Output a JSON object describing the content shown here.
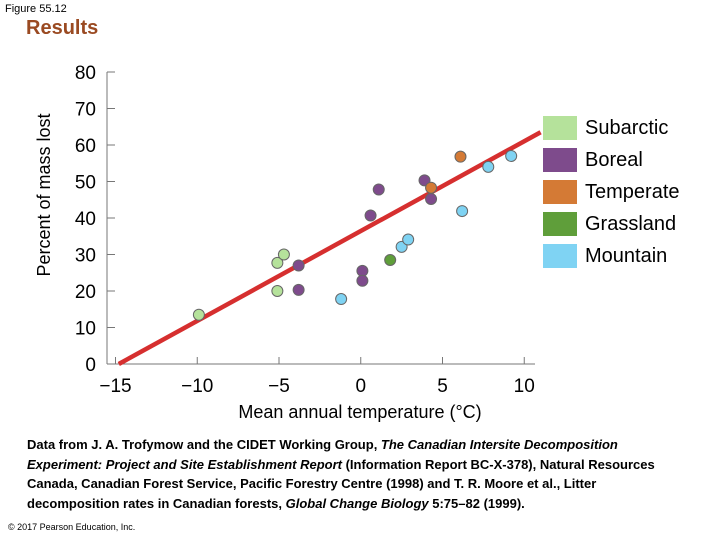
{
  "figure_label": "Figure 55.12",
  "section_title": "Results",
  "chart_data": {
    "type": "scatter",
    "title": "",
    "xlabel": "Mean annual temperature (°C)",
    "ylabel": "Percent of mass lost",
    "xlim": [
      -15,
      11
    ],
    "ylim": [
      0,
      80
    ],
    "xticks": [
      -15,
      -10,
      -5,
      0,
      5,
      10
    ],
    "xtick_labels": [
      "−15",
      "−10",
      "−5",
      "0",
      "5",
      "10"
    ],
    "yticks": [
      0,
      10,
      20,
      30,
      40,
      50,
      60,
      70,
      80
    ],
    "ytick_labels": [
      "0",
      "10",
      "20",
      "30",
      "40",
      "50",
      "60",
      "70",
      "80"
    ],
    "grid": false,
    "legend_position": "right",
    "trendline": {
      "x": [
        -14.8,
        11
      ],
      "y": [
        0,
        63.5
      ],
      "color": "#d62f2f"
    },
    "series": [
      {
        "name": "Subarctic",
        "color": "#b5e29b",
        "points": [
          [
            -9.9,
            13.5
          ],
          [
            -5.1,
            27.7
          ],
          [
            -4.7,
            30.0
          ],
          [
            -5.1,
            20.0
          ]
        ]
      },
      {
        "name": "Boreal",
        "color": "#7e4b8c",
        "points": [
          [
            -3.8,
            27.0
          ],
          [
            -3.8,
            20.3
          ],
          [
            0.1,
            25.5
          ],
          [
            0.1,
            22.8
          ],
          [
            0.6,
            40.7
          ],
          [
            1.1,
            47.8
          ],
          [
            3.9,
            50.3
          ],
          [
            4.3,
            45.2
          ]
        ]
      },
      {
        "name": "Temperate",
        "color": "#d47a35",
        "points": [
          [
            4.3,
            48.3
          ],
          [
            6.1,
            56.8
          ]
        ]
      },
      {
        "name": "Grassland",
        "color": "#5f9e3a",
        "points": [
          [
            1.8,
            28.5
          ]
        ]
      },
      {
        "name": "Mountain",
        "color": "#7fd3f3",
        "points": [
          [
            -1.2,
            17.8
          ],
          [
            2.5,
            32.1
          ],
          [
            2.9,
            34.1
          ],
          [
            6.2,
            41.9
          ],
          [
            7.8,
            54.0
          ],
          [
            9.2,
            57.0
          ]
        ]
      }
    ]
  },
  "caption": {
    "p1": "Data from J. A. Trofymow and the CIDET Working Group, ",
    "italic1": "The Canadian Intersite Decomposition Experiment: Project and Site Establishment Report",
    "p2": " (Information Report BC-X-378), Natural Resources Canada, Canadian Forest Service, Pacific Forestry Centre (1998) and T. R. Moore et al., Litter decomposition rates in Canadian forests, ",
    "italic2": "Global Change Biology",
    "p3": " 5:75–82 (1999)."
  },
  "copyright": "© 2017 Pearson Education, Inc."
}
